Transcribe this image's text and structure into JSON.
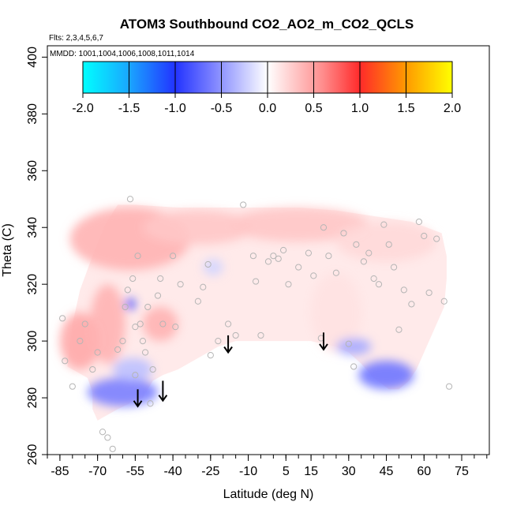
{
  "chart_data": {
    "type": "heatmap",
    "title": "ATOM3 Southbound CO2_AO2_m_CO2_QCLS",
    "flights_text": "Flts: 2,3,4,5,6,7",
    "dates_text": "MMDD: 1001,1004,1006,1008,1011,1014",
    "xlabel": "Latitude (deg N)",
    "ylabel": "Theta (C)",
    "xlim": [
      -90,
      86
    ],
    "ylim": [
      260,
      404
    ],
    "x_ticks": [
      -85,
      -70,
      -55,
      -40,
      -25,
      -10,
      5,
      15,
      30,
      45,
      60,
      75
    ],
    "x_minor_step": 5,
    "y_ticks": [
      260,
      280,
      300,
      320,
      340,
      360,
      380,
      400
    ],
    "colorbar": {
      "range": [
        -2.0,
        2.0
      ],
      "ticks": [
        "-2.0",
        "-1.5",
        "-1.0",
        "-0.5",
        "0.0",
        "0.5",
        "1.0",
        "1.5",
        "2.0"
      ],
      "stops": [
        {
          "v": -2.0,
          "color": "#00ffff"
        },
        {
          "v": -1.5,
          "color": "#1aa6ff"
        },
        {
          "v": -1.0,
          "color": "#2233ff"
        },
        {
          "v": -0.6,
          "color": "#7a80ff"
        },
        {
          "v": 0.0,
          "color": "#ffffff"
        },
        {
          "v": 0.6,
          "color": "#ff8c8c"
        },
        {
          "v": 1.0,
          "color": "#ff2a2a"
        },
        {
          "v": 1.5,
          "color": "#ff9a00"
        },
        {
          "v": 2.0,
          "color": "#ffff00"
        }
      ]
    },
    "field_outline": [
      [
        -82,
        291
      ],
      [
        -80,
        306
      ],
      [
        -77,
        318
      ],
      [
        -72,
        330
      ],
      [
        -67,
        341
      ],
      [
        -62,
        348
      ],
      [
        -55,
        348
      ],
      [
        -38,
        347
      ],
      [
        -22,
        347
      ],
      [
        -5,
        347
      ],
      [
        10,
        347
      ],
      [
        25,
        346
      ],
      [
        40,
        344
      ],
      [
        55,
        342
      ],
      [
        67,
        338
      ],
      [
        69,
        330
      ],
      [
        69,
        322
      ],
      [
        68,
        312
      ],
      [
        62,
        300
      ],
      [
        57,
        290
      ],
      [
        54,
        286
      ],
      [
        50,
        283
      ],
      [
        46,
        283
      ],
      [
        40,
        287
      ],
      [
        35,
        292
      ],
      [
        30,
        296
      ],
      [
        25,
        298
      ],
      [
        15,
        300
      ],
      [
        0,
        300
      ],
      [
        -15,
        300
      ],
      [
        -22,
        298
      ],
      [
        -30,
        294
      ],
      [
        -38,
        290
      ],
      [
        -44,
        288
      ],
      [
        -48,
        286
      ],
      [
        -50,
        283
      ],
      [
        -52,
        280
      ],
      [
        -55,
        279
      ],
      [
        -62,
        276
      ],
      [
        -70,
        272
      ],
      [
        -72,
        276
      ],
      [
        -72,
        282
      ],
      [
        -74,
        287
      ],
      [
        -78,
        289
      ]
    ],
    "patches": [
      {
        "x": -57,
        "y": 336,
        "rx": 24,
        "ry": 11,
        "value": 0.4
      },
      {
        "x": -30,
        "y": 340,
        "rx": 22,
        "ry": 6,
        "value": 0.3
      },
      {
        "x": 10,
        "y": 341,
        "rx": 28,
        "ry": 6,
        "value": 0.3
      },
      {
        "x": 45,
        "y": 335,
        "rx": 20,
        "ry": 7,
        "value": 0.2
      },
      {
        "x": -77,
        "y": 300,
        "rx": 8,
        "ry": 10,
        "value": 0.45
      },
      {
        "x": -66,
        "y": 306,
        "rx": 7,
        "ry": 14,
        "value": 0.4
      },
      {
        "x": -45,
        "y": 306,
        "rx": 7,
        "ry": 6,
        "value": 0.4
      },
      {
        "x": 25,
        "y": 310,
        "rx": 10,
        "ry": 14,
        "value": 0.15
      },
      {
        "x": -60,
        "y": 282,
        "rx": 14,
        "ry": 5,
        "value": -0.6
      },
      {
        "x": -56,
        "y": 290,
        "rx": 8,
        "ry": 4,
        "value": -0.3
      },
      {
        "x": 45,
        "y": 288,
        "rx": 11,
        "ry": 5,
        "value": -0.65
      },
      {
        "x": 32,
        "y": 298,
        "rx": 7,
        "ry": 3,
        "value": -0.4
      },
      {
        "x": -57,
        "y": 313,
        "rx": 2,
        "ry": 2,
        "value": -0.9
      },
      {
        "x": -24,
        "y": 326,
        "rx": 4,
        "ry": 3,
        "value": -0.2
      }
    ],
    "points": [
      [
        -84,
        308
      ],
      [
        -83,
        293
      ],
      [
        -80,
        284
      ],
      [
        -77,
        300
      ],
      [
        -75,
        306
      ],
      [
        -72,
        290
      ],
      [
        -70,
        296
      ],
      [
        -68,
        268
      ],
      [
        -66,
        266
      ],
      [
        -64,
        262
      ],
      [
        -62,
        297
      ],
      [
        -60,
        300
      ],
      [
        -59,
        312
      ],
      [
        -58,
        318
      ],
      [
        -57,
        350
      ],
      [
        -56,
        322
      ],
      [
        -55,
        305
      ],
      [
        -55,
        288
      ],
      [
        -54,
        330
      ],
      [
        -53,
        306
      ],
      [
        -52,
        300
      ],
      [
        -51,
        296
      ],
      [
        -50,
        312
      ],
      [
        -49,
        278
      ],
      [
        -48,
        290
      ],
      [
        -46,
        316
      ],
      [
        -45,
        322
      ],
      [
        -44,
        306
      ],
      [
        -40,
        330
      ],
      [
        -39,
        305
      ],
      [
        -37,
        320
      ],
      [
        -30,
        314
      ],
      [
        -28,
        319
      ],
      [
        -26,
        327
      ],
      [
        -25,
        295
      ],
      [
        -22,
        300
      ],
      [
        -18,
        306
      ],
      [
        -15,
        302
      ],
      [
        -12,
        348
      ],
      [
        -8,
        330
      ],
      [
        -7,
        321
      ],
      [
        -5,
        302
      ],
      [
        -2,
        328
      ],
      [
        0,
        330
      ],
      [
        2,
        329
      ],
      [
        4,
        332
      ],
      [
        6,
        320
      ],
      [
        10,
        326
      ],
      [
        14,
        331
      ],
      [
        16,
        323
      ],
      [
        19,
        301
      ],
      [
        20,
        340
      ],
      [
        22,
        330
      ],
      [
        25,
        324
      ],
      [
        28,
        338
      ],
      [
        30,
        299
      ],
      [
        32,
        291
      ],
      [
        33,
        334
      ],
      [
        36,
        328
      ],
      [
        38,
        331
      ],
      [
        40,
        322
      ],
      [
        42,
        320
      ],
      [
        44,
        341
      ],
      [
        46,
        334
      ],
      [
        48,
        326
      ],
      [
        50,
        304
      ],
      [
        52,
        318
      ],
      [
        55,
        313
      ],
      [
        58,
        342
      ],
      [
        60,
        337
      ],
      [
        62,
        317
      ],
      [
        65,
        336
      ],
      [
        68,
        314
      ],
      [
        70,
        284
      ]
    ],
    "arrows": [
      {
        "x": -54,
        "y_top": 283,
        "y_bottom": 277
      },
      {
        "x": -44,
        "y_top": 286,
        "y_bottom": 279
      },
      {
        "x": -18,
        "y_top": 302,
        "y_bottom": 296
      },
      {
        "x": 20,
        "y_top": 303,
        "y_bottom": 297
      }
    ]
  }
}
